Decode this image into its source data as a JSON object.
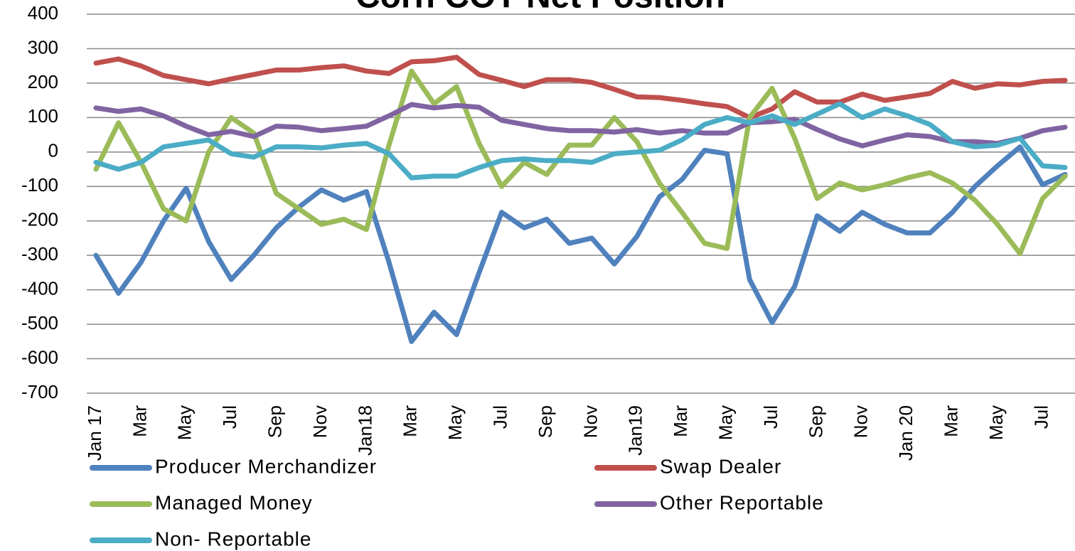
{
  "chart_data": {
    "type": "line",
    "title": "Corn COT Net Position",
    "categories": [
      "Jan 17",
      null,
      "Mar",
      null,
      "May",
      null,
      "Jul",
      null,
      "Sep",
      null,
      "Nov",
      null,
      "Jan18",
      null,
      "Mar",
      null,
      "May",
      null,
      "Jul",
      null,
      "Sep",
      null,
      "Nov",
      null,
      "Jan19",
      null,
      "Mar",
      null,
      "May",
      null,
      "Jul",
      null,
      "Sep",
      null,
      "Nov",
      null,
      "Jan 20",
      null,
      "Mar",
      null,
      "May",
      null,
      "Jul",
      null
    ],
    "series": [
      {
        "name": "Producer Merchandizer",
        "color": "#4f81bd",
        "values": [
          -300,
          -410,
          -320,
          -200,
          -105,
          -260,
          -370,
          -300,
          -220,
          -160,
          -110,
          -140,
          -115,
          -320,
          -550,
          -465,
          -530,
          -350,
          -175,
          -220,
          -195,
          -265,
          -250,
          -325,
          -245,
          -130,
          -80,
          5,
          -5,
          -370,
          -495,
          -390,
          -185,
          -230,
          -175,
          -210,
          -235,
          -235,
          -175,
          -100,
          -40,
          15,
          -95,
          -65
        ]
      },
      {
        "name": "Swap Dealer",
        "color": "#c0504d",
        "values": [
          258,
          270,
          250,
          222,
          210,
          198,
          212,
          225,
          238,
          238,
          245,
          250,
          235,
          228,
          262,
          265,
          275,
          225,
          208,
          190,
          210,
          210,
          202,
          182,
          160,
          158,
          150,
          140,
          132,
          100,
          125,
          175,
          145,
          145,
          168,
          150,
          160,
          170,
          205,
          185,
          198,
          195,
          205,
          208
        ]
      },
      {
        "name": "Managed Money",
        "color": "#9bbb59",
        "values": [
          -50,
          85,
          -30,
          -165,
          -200,
          0,
          100,
          55,
          -120,
          -165,
          -210,
          -195,
          -225,
          20,
          235,
          140,
          190,
          25,
          -100,
          -30,
          -65,
          20,
          20,
          100,
          30,
          -90,
          -175,
          -265,
          -280,
          100,
          185,
          40,
          -135,
          -90,
          -110,
          -95,
          -75,
          -60,
          -90,
          -140,
          -210,
          -295,
          -135,
          -70
        ]
      },
      {
        "name": "Other Reportable",
        "color": "#8064a2",
        "values": [
          128,
          118,
          125,
          105,
          75,
          50,
          60,
          45,
          75,
          72,
          62,
          68,
          75,
          105,
          138,
          128,
          135,
          130,
          92,
          80,
          68,
          62,
          62,
          58,
          65,
          55,
          62,
          55,
          55,
          85,
          88,
          95,
          65,
          38,
          18,
          35,
          50,
          45,
          30,
          30,
          25,
          40,
          62,
          72
        ]
      },
      {
        "name": "Non- Reportable",
        "color": "#4bacc6",
        "values": [
          -30,
          -50,
          -30,
          15,
          25,
          35,
          -5,
          -15,
          15,
          15,
          12,
          20,
          25,
          -5,
          -75,
          -70,
          -70,
          -45,
          -25,
          -20,
          -25,
          -25,
          -30,
          -5,
          0,
          5,
          35,
          80,
          100,
          85,
          105,
          80,
          110,
          140,
          100,
          125,
          105,
          80,
          30,
          15,
          20,
          40,
          -40,
          -45
        ]
      }
    ],
    "ylim": [
      -700,
      400
    ],
    "yticks": [
      -700,
      -600,
      -500,
      -400,
      -300,
      -200,
      -100,
      0,
      100,
      200,
      300,
      400
    ],
    "grid": true,
    "legend": "bottom"
  }
}
